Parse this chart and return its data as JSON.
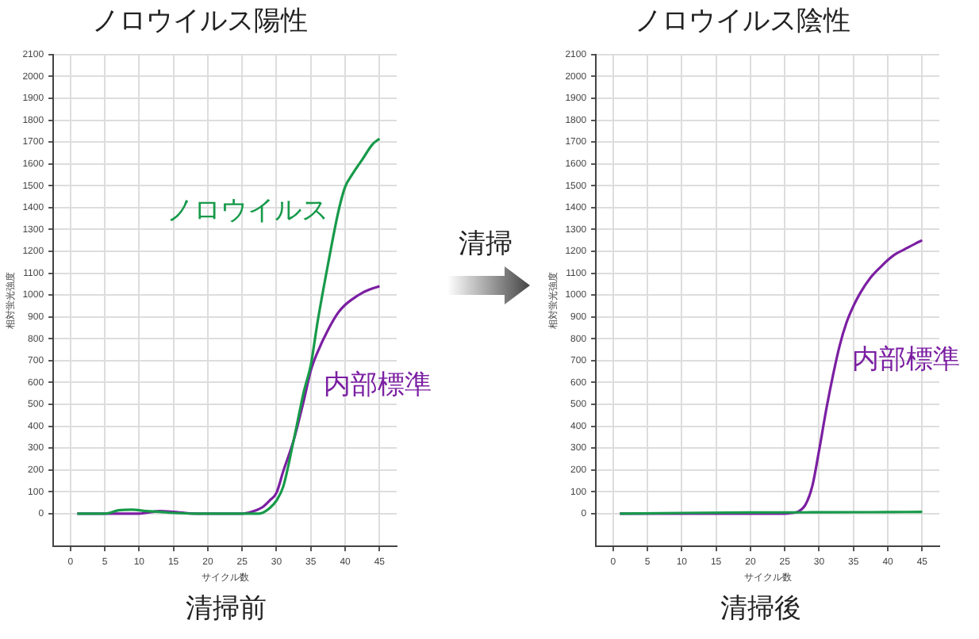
{
  "chart_data": [
    {
      "type": "line",
      "title": "ノロウイルス陽性",
      "xlabel": "サイクル数",
      "ylabel": "相対蛍光強度",
      "annotations": [
        "清掃前",
        "清掃"
      ],
      "legend": false,
      "grid": true,
      "marker": "none",
      "line_style": "solid",
      "xlim": [
        -2.5,
        47.5
      ],
      "xticks": [
        0,
        5,
        10,
        15,
        20,
        25,
        30,
        35,
        40,
        45
      ],
      "ylim": [
        -150,
        2100
      ],
      "yticks": [
        0,
        100,
        200,
        300,
        400,
        500,
        600,
        700,
        800,
        900,
        1000,
        1100,
        1200,
        1300,
        1400,
        1500,
        1600,
        1700,
        1800,
        1900,
        2000,
        2100
      ],
      "series": [
        {
          "name": "ノロウイルス",
          "color": "#179a4a",
          "x": [
            1,
            5,
            7,
            9,
            11,
            13,
            15,
            18,
            22,
            26,
            27.5,
            29,
            30,
            31,
            32.5,
            34,
            35,
            36,
            37.5,
            39,
            40,
            41,
            42.5,
            44,
            45
          ],
          "values": [
            0,
            0,
            15,
            18,
            12,
            8,
            3,
            0,
            0,
            0,
            0,
            25,
            60,
            125,
            335,
            560,
            680,
            880,
            1140,
            1380,
            1495,
            1550,
            1620,
            1690,
            1715
          ]
        },
        {
          "name": "内部標準",
          "color": "#7b1fa2",
          "x": [
            1,
            5,
            10,
            12,
            13,
            15,
            17,
            20,
            25,
            26,
            27,
            28,
            29,
            30,
            31,
            32.5,
            34,
            35,
            36,
            37.5,
            39,
            40,
            41,
            42.5,
            44,
            45
          ],
          "values": [
            0,
            0,
            0,
            8,
            12,
            8,
            2,
            0,
            0,
            5,
            15,
            30,
            60,
            95,
            195,
            335,
            520,
            655,
            740,
            840,
            920,
            955,
            980,
            1010,
            1030,
            1040
          ]
        }
      ]
    },
    {
      "type": "line",
      "title": "ノロウイルス陰性",
      "xlabel": "サイクル数",
      "ylabel": "相対蛍光強度",
      "annotations": [
        "清掃後"
      ],
      "legend": false,
      "grid": true,
      "marker": "none",
      "line_style": "solid",
      "xlim": [
        -2.5,
        47.5
      ],
      "xticks": [
        0,
        5,
        10,
        15,
        20,
        25,
        30,
        35,
        40,
        45
      ],
      "ylim": [
        -150,
        2100
      ],
      "yticks": [
        0,
        100,
        200,
        300,
        400,
        500,
        600,
        700,
        800,
        900,
        1000,
        1100,
        1200,
        1300,
        1400,
        1500,
        1600,
        1700,
        1800,
        1900,
        2000,
        2100
      ],
      "series": [
        {
          "color": "#179a4a",
          "x": [
            1,
            10,
            20,
            30,
            40,
            45
          ],
          "values": [
            0,
            3,
            5,
            6,
            7,
            8
          ]
        },
        {
          "name": "内部標準",
          "color": "#7b1fa2",
          "x": [
            1,
            10,
            20,
            25,
            26,
            27,
            28,
            29,
            30,
            31,
            32,
            33,
            34,
            35,
            36,
            37.5,
            39,
            40,
            41,
            42.5,
            44,
            45
          ],
          "values": [
            0,
            0,
            0,
            0,
            3,
            10,
            40,
            125,
            290,
            470,
            630,
            770,
            875,
            950,
            1010,
            1080,
            1130,
            1160,
            1185,
            1210,
            1235,
            1250
          ]
        }
      ]
    }
  ]
}
